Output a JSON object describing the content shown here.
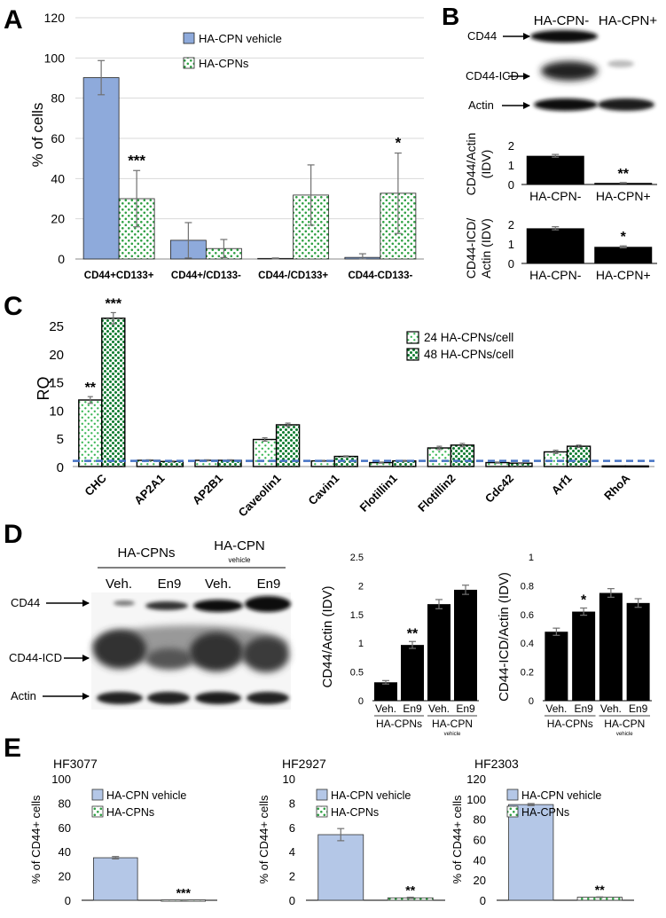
{
  "panels": {
    "A": {
      "letter": "A",
      "chart_data": {
        "type": "bar",
        "ylabel": "% of cells",
        "ylim": [
          0,
          120
        ],
        "yticks": [
          0,
          20,
          40,
          60,
          80,
          100,
          120
        ],
        "categories": [
          "CD44+CD133+",
          "CD44+/CD133-",
          "CD44-/CD133+",
          "CD44-CD133-"
        ],
        "series": [
          {
            "name": "HA-CPN vehicle",
            "values": [
              90.2,
              9.3,
              0.3,
              0.8
            ],
            "errors": [
              8.5,
              8.8,
              0.2,
              1.8
            ],
            "fill": "blue"
          },
          {
            "name": "HA-CPNs",
            "values": [
              30.0,
              5.2,
              31.8,
              32.7
            ],
            "errors": [
              14.0,
              4.5,
              15.0,
              20.0
            ],
            "fill": "green-dots"
          }
        ],
        "annotations": [
          {
            "category": 0,
            "series": 1,
            "text": "***"
          },
          {
            "category": 3,
            "series": 1,
            "text": "*"
          }
        ],
        "legend": "top-center"
      }
    },
    "B": {
      "letter": "B",
      "blot": {
        "columns": [
          "HA-CPN-",
          "HA-CPN+"
        ],
        "rows": [
          "CD44",
          "CD44-ICD",
          "Actin"
        ]
      },
      "chart_data": [
        {
          "type": "bar",
          "ylabel_lines": [
            "CD44/Actin",
            "(IDV)"
          ],
          "ylim": [
            0,
            2
          ],
          "yticks": [
            0,
            1,
            2
          ],
          "categories": [
            "HA-CPN-",
            "HA-CPN+"
          ],
          "values": [
            1.47,
            0.08
          ],
          "errors": [
            0.07,
            0.02
          ],
          "annotations": [
            {
              "category": 1,
              "text": "**"
            }
          ]
        },
        {
          "type": "bar",
          "ylabel_lines": [
            "CD44-ICD/",
            "Actin (IDV)"
          ],
          "ylim": [
            0,
            2
          ],
          "yticks": [
            0,
            1,
            2
          ],
          "categories": [
            "HA-CPN-",
            "HA-CPN+"
          ],
          "values": [
            1.8,
            0.85
          ],
          "errors": [
            0.08,
            0.05
          ],
          "annotations": [
            {
              "category": 1,
              "text": "*"
            }
          ]
        }
      ]
    },
    "C": {
      "letter": "C",
      "chart_data": {
        "type": "bar",
        "ylabel": "RQ",
        "ylim": [
          0,
          28
        ],
        "yticks": [
          0,
          5,
          10,
          15,
          20,
          25
        ],
        "reference_line": 1,
        "categories": [
          "CHC",
          "AP2A1",
          "AP2B1",
          "Caveolin1",
          "Cavin1",
          "Flotillin1",
          "Flotillin2",
          "Cdc42",
          "Arf1",
          "RhoA"
        ],
        "series": [
          {
            "name": "24 HA-CPNs/cell",
            "values": [
              11.8,
              1.1,
              1.1,
              4.8,
              1.0,
              0.7,
              3.3,
              0.7,
              2.6,
              0.1
            ],
            "errors": [
              0.6,
              0.1,
              0.1,
              0.3,
              0.1,
              0.1,
              0.3,
              0.1,
              0.3,
              0.0
            ],
            "fill": "green-dots-light"
          },
          {
            "name": "48 HA-CPNs/cell",
            "values": [
              26.3,
              0.9,
              1.1,
              7.4,
              1.8,
              1.0,
              3.8,
              0.6,
              3.6,
              0.1
            ],
            "errors": [
              1.0,
              0.1,
              0.1,
              0.3,
              0.1,
              0.1,
              0.3,
              0.1,
              0.2,
              0.0
            ],
            "fill": "green-dots-dark"
          }
        ],
        "annotations": [
          {
            "category": 0,
            "series": 0,
            "text": "**"
          },
          {
            "category": 0,
            "series": 1,
            "text": "***"
          }
        ],
        "legend": "top-right"
      }
    },
    "D": {
      "letter": "D",
      "blot": {
        "groups": [
          {
            "label": "HA-CPNs",
            "sublabel": ""
          },
          {
            "label": "HA-CPN",
            "sublabel": "vehicle"
          }
        ],
        "lanes": [
          "Veh.",
          "En9",
          "Veh.",
          "En9"
        ],
        "rows": [
          "CD44",
          "CD44-ICD",
          "Actin"
        ]
      },
      "chart_data": [
        {
          "type": "bar",
          "ylabel": "CD44/Actin (IDV)",
          "ylim": [
            0,
            2.5
          ],
          "yticks": [
            "0",
            "0.5",
            "1",
            "1.5",
            "2",
            "2.5"
          ],
          "categories": [
            "Veh.",
            "En9",
            "Veh.",
            "En9"
          ],
          "groups": [
            {
              "label": "HA-CPNs",
              "sublabel": ""
            },
            {
              "label": "HA-CPN",
              "sublabel": "vehicle"
            }
          ],
          "values": [
            0.32,
            0.97,
            1.68,
            1.93
          ],
          "errors": [
            0.03,
            0.06,
            0.08,
            0.08
          ],
          "annotations": [
            {
              "category": 1,
              "text": "**"
            }
          ]
        },
        {
          "type": "bar",
          "ylabel": "CD44-ICD/Actin (IDV)",
          "ylim": [
            0,
            1
          ],
          "yticks": [
            "0",
            "0.2",
            "0.4",
            "0.6",
            "0.8",
            "1"
          ],
          "categories": [
            "Veh.",
            "En9",
            "Veh.",
            "En9"
          ],
          "groups": [
            {
              "label": "HA-CPNs",
              "sublabel": ""
            },
            {
              "label": "HA-CPN",
              "sublabel": "vehicle"
            }
          ],
          "values": [
            0.48,
            0.62,
            0.75,
            0.68
          ],
          "errors": [
            0.025,
            0.025,
            0.03,
            0.03
          ],
          "annotations": [
            {
              "category": 1,
              "text": "*"
            }
          ]
        }
      ]
    },
    "E": {
      "letter": "E",
      "chart_data": [
        {
          "type": "bar",
          "title": "HF3077",
          "ylabel": "% of CD44+ cells",
          "ylim": [
            0,
            100
          ],
          "yticks": [
            0,
            20,
            40,
            60,
            80,
            100
          ],
          "series": [
            {
              "name": "HA-CPN vehicle",
              "value": 35,
              "error": 1.0
            },
            {
              "name": "HA-CPNs",
              "value": 0.3,
              "error": 0.1
            }
          ],
          "annotation": "***"
        },
        {
          "type": "bar",
          "title": "HF2927",
          "ylabel": "% of CD44+ cells",
          "ylim": [
            0,
            10
          ],
          "yticks": [
            0,
            2,
            4,
            6,
            8,
            10
          ],
          "series": [
            {
              "name": "HA-CPN vehicle",
              "value": 5.4,
              "error": 0.5
            },
            {
              "name": "HA-CPNs",
              "value": 0.2,
              "error": 0.05
            }
          ],
          "annotation": "**"
        },
        {
          "type": "bar",
          "title": "HF2303",
          "ylabel": "% of CD44+ cells",
          "ylim": [
            0,
            120
          ],
          "yticks": [
            0,
            20,
            40,
            60,
            80,
            100,
            120
          ],
          "series": [
            {
              "name": "HA-CPN vehicle",
              "value": 94.5,
              "error": 1.0
            },
            {
              "name": "HA-CPNs",
              "value": 3.0,
              "error": 0.3
            }
          ],
          "annotation": "**"
        }
      ]
    }
  },
  "colors": {
    "blue_fill": "#8eaadb",
    "blue_light": "#b4c7e7",
    "green_dot": "#2ea043",
    "dark_green_dot": "#0e7a2e",
    "black": "#000000",
    "axis": "#888888",
    "grid": "#d9d9d9",
    "error": "#707070",
    "dash": "#4472c4"
  }
}
